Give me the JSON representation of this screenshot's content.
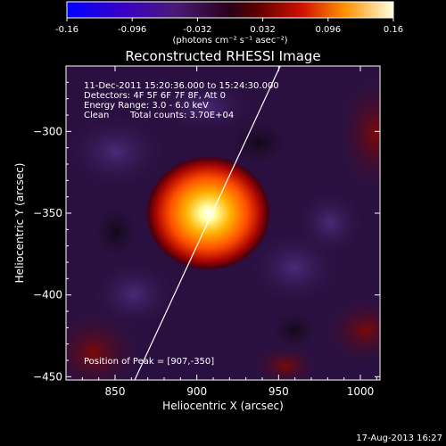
{
  "colorbar": {
    "ticks": [
      "-0.16",
      "-0.096",
      "-0.032",
      "0.032",
      "0.096",
      "0.16"
    ],
    "units": "(photons cm⁻² s⁻¹ asec⁻²)",
    "range": [
      -0.16,
      0.16
    ]
  },
  "title": "Reconstructed RHESSI Image",
  "info": {
    "time_range": "11-Dec-2011 15:20:36.000 to 15:24:30.000",
    "detectors": "Detectors: 4F 5F 6F 7F 8F, Att 0",
    "energy": "Energy Range: 3.0 - 6.0 keV",
    "algorithm": "Clean",
    "counts": "Total counts: 3.70E+04"
  },
  "peak_label": "Position of Peak = [907,-350]",
  "footer_date": "17-Aug-2013 16:27",
  "chart_data": {
    "type": "heatmap",
    "title": "Reconstructed RHESSI Image",
    "xlabel": "Heliocentric X (arcsec)",
    "ylabel": "Heliocentric Y (arcsec)",
    "xlim": [
      820,
      1012
    ],
    "ylim": [
      -452,
      -260
    ],
    "xticks": [
      "850",
      "900",
      "950",
      "1000"
    ],
    "yticks": [
      "−300",
      "−350",
      "−400",
      "−450"
    ],
    "xtick_values": [
      850,
      900,
      950,
      1000
    ],
    "ytick_values": [
      -300,
      -350,
      -400,
      -450
    ],
    "peak": [
      907,
      -350
    ],
    "limb_line": [
      [
        862,
        -452
      ],
      [
        951,
        -260
      ]
    ],
    "colormap": "rhessi-thermal"
  }
}
